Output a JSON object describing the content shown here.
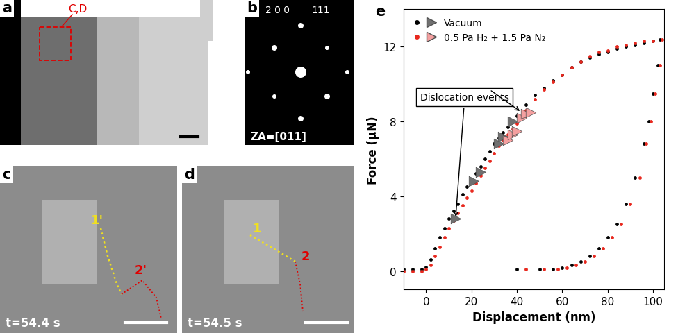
{
  "panels": {
    "a": {
      "label": "a",
      "region_label": "C,D"
    },
    "b": {
      "label": "b",
      "spot_labels": [
        "2 0 0",
        "1̄1̄1"
      ],
      "zone_axis": "ZA=[011]"
    },
    "c": {
      "label": "c",
      "line_labels": [
        "1'",
        "2'"
      ],
      "time": "t=54.4 s"
    },
    "d": {
      "label": "d",
      "line_labels": [
        "1",
        "2"
      ],
      "time": "t=54.5 s"
    }
  },
  "chart_data": {
    "panel": "e",
    "type": "scatter",
    "x_label": "Displacement (nm)",
    "y_label": "Force (µN)",
    "xlim": [
      -10,
      105
    ],
    "ylim": [
      -1,
      14
    ],
    "xticks": [
      0,
      20,
      40,
      60,
      80,
      100
    ],
    "yticks": [
      0,
      4,
      8,
      12
    ],
    "legend": "upper left",
    "annotation": "Dislocation events",
    "series": [
      {
        "name": "Vacuum",
        "color": "#000000",
        "marker": "dot",
        "x": [
          -10,
          -6,
          -2,
          0,
          2,
          4,
          6,
          8,
          10,
          12,
          14,
          16,
          18,
          20,
          22,
          24,
          26,
          28,
          30,
          32,
          34,
          36,
          38,
          40,
          44,
          48,
          52,
          56,
          60,
          64,
          68,
          72,
          76,
          80,
          84,
          88,
          92,
          96,
          100,
          103,
          102,
          100,
          98,
          96,
          92,
          88,
          84,
          80,
          76,
          72,
          68,
          64,
          60,
          56,
          50,
          40
        ],
        "values": [
          0.1,
          0.1,
          0.1,
          0.2,
          0.6,
          1.2,
          1.8,
          2.3,
          2.8,
          3.2,
          3.6,
          4.1,
          4.5,
          4.8,
          5.2,
          5.6,
          6.0,
          6.4,
          6.8,
          7.1,
          7.4,
          7.7,
          8.0,
          8.3,
          8.9,
          9.4,
          9.8,
          10.2,
          10.5,
          10.9,
          11.2,
          11.4,
          11.6,
          11.7,
          11.9,
          12.0,
          12.1,
          12.2,
          12.3,
          12.4,
          11.0,
          9.5,
          8.0,
          6.8,
          5.0,
          3.6,
          2.5,
          1.8,
          1.2,
          0.8,
          0.5,
          0.3,
          0.15,
          0.1,
          0.1,
          0.1
        ],
        "events": {
          "color": "#707070",
          "marker": "triangle",
          "x": [
            13,
            21,
            24,
            32,
            34,
            38
          ],
          "values": [
            2.8,
            4.8,
            5.3,
            6.8,
            7.2,
            8.0
          ]
        }
      },
      {
        "name": "0.5 Pa H₂ + 1.5 Pa N₂",
        "color": "#e8281e",
        "marker": "dot",
        "x": [
          -10,
          -6,
          -2,
          0,
          2,
          4,
          6,
          8,
          10,
          12,
          14,
          16,
          18,
          20,
          22,
          24,
          26,
          28,
          30,
          32,
          34,
          36,
          38,
          40,
          44,
          48,
          52,
          56,
          60,
          64,
          68,
          72,
          76,
          80,
          84,
          88,
          92,
          96,
          100,
          104,
          103,
          101,
          99,
          97,
          94,
          90,
          86,
          82,
          78,
          74,
          70,
          66,
          62,
          58,
          52,
          44
        ],
        "values": [
          0.0,
          0.0,
          0.0,
          0.1,
          0.3,
          0.8,
          1.3,
          1.8,
          2.3,
          2.7,
          3.1,
          3.5,
          3.9,
          4.3,
          4.7,
          5.1,
          5.5,
          5.9,
          6.3,
          6.7,
          7.0,
          7.3,
          7.6,
          7.9,
          8.6,
          9.2,
          9.7,
          10.1,
          10.5,
          10.9,
          11.2,
          11.5,
          11.7,
          11.8,
          12.0,
          12.1,
          12.2,
          12.3,
          12.3,
          12.4,
          11.0,
          9.5,
          8.0,
          6.8,
          5.0,
          3.6,
          2.5,
          1.8,
          1.2,
          0.8,
          0.5,
          0.3,
          0.15,
          0.1,
          0.1,
          0.1
        ],
        "events": {
          "color": "#f4a0a0",
          "marker": "triangle",
          "x": [
            36,
            38,
            40,
            42,
            44,
            46
          ],
          "values": [
            7.0,
            7.3,
            7.5,
            8.2,
            8.4,
            8.5
          ]
        }
      }
    ]
  }
}
